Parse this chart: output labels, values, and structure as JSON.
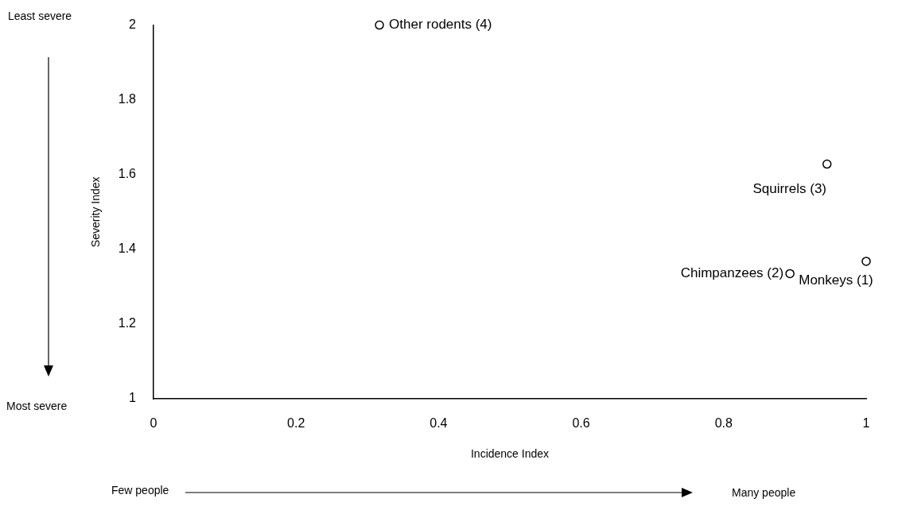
{
  "chart_data": {
    "type": "scatter",
    "xlabel": "Incidence Index",
    "ylabel": "Severity Index",
    "series": [
      {
        "color": "#000000",
        "x": [
          1.0,
          0.893,
          0.945,
          0.317
        ],
        "values": [
          1.368,
          1.335,
          1.628,
          2.0
        ]
      }
    ],
    "xlim": [
      0,
      1
    ],
    "xticks": [
      0,
      0.2,
      0.4,
      0.6,
      0.8,
      1
    ],
    "ylim": [
      1,
      2
    ],
    "yticks": [
      1,
      1.2,
      1.4,
      1.6,
      1.8,
      2
    ],
    "grid": false,
    "legend": false,
    "marker": "circle",
    "annotations": [
      {
        "text": "Monkeys (1)",
        "x": 1.0,
        "y": 1.368
      },
      {
        "text": "Chimpanzees (2)",
        "x": 0.893,
        "y": 1.335
      },
      {
        "text": "Squirrels (3)",
        "x": 0.945,
        "y": 1.628
      },
      {
        "text": "Other rodents (4)",
        "x": 0.317,
        "y": 2.0
      },
      "Least severe",
      "Most severe",
      "Few people",
      "Many people"
    ]
  }
}
